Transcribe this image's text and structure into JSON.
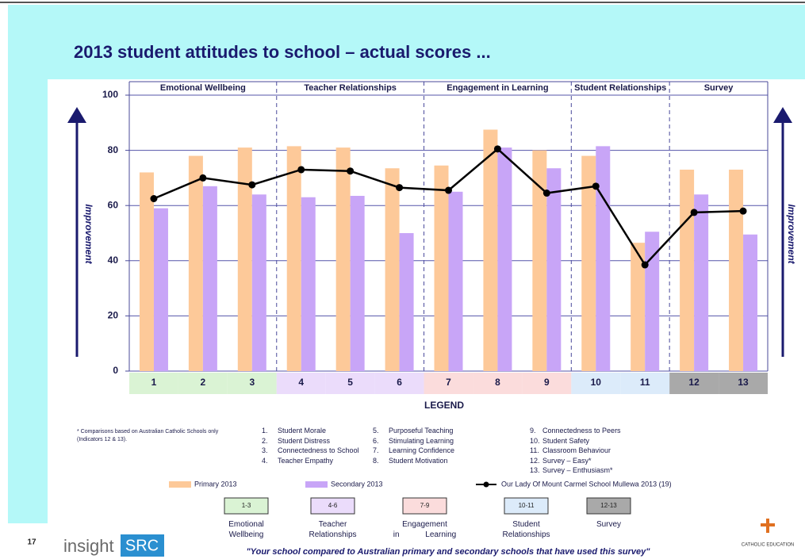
{
  "page_number": "17",
  "logo": {
    "left": "insight",
    "right": "SRC"
  },
  "org": "CATHOLIC EDUCATION",
  "quote": "\"Your school compared to Australian primary and secondary schools that have used this survey\"",
  "chart_data": {
    "type": "bar",
    "title": "2013 student attitudes to school – actual scores ...",
    "y_label": "Improvement",
    "categories": [
      "1",
      "2",
      "3",
      "4",
      "5",
      "6",
      "7",
      "8",
      "9",
      "10",
      "11",
      "12",
      "13"
    ],
    "series": [
      {
        "name": "Primary 2013",
        "type": "bar",
        "color": "#fdc999",
        "values": [
          72,
          78,
          81,
          81.5,
          81,
          73.5,
          74.5,
          87.5,
          80,
          78,
          46.5,
          73,
          73
        ]
      },
      {
        "name": "Secondary 2013",
        "type": "bar",
        "color": "#c8a5f7",
        "values": [
          59,
          67,
          64,
          63,
          63.5,
          50,
          65,
          81,
          73.5,
          81.5,
          50.5,
          64,
          49.5
        ]
      },
      {
        "name": "Our Lady Of Mount Carmel School Mullewa 2013 (19)",
        "type": "line",
        "color": "#000000",
        "values": [
          62.5,
          70,
          67.5,
          73,
          72.5,
          66.5,
          65.5,
          80.5,
          64.5,
          67,
          38.5,
          57.5,
          58
        ]
      }
    ],
    "ylim": [
      0,
      100
    ],
    "yticks": [
      0,
      20,
      40,
      60,
      80,
      100
    ],
    "grid": true,
    "groups": [
      {
        "name": "Emotional Wellbeing",
        "range": "1-3",
        "color": "#daf3d4"
      },
      {
        "name": "Teacher Relationships",
        "range": "4-6",
        "color": "#ebdcfb"
      },
      {
        "name": "Engagement in Learning",
        "range": "7-9",
        "color": "#fbdcdc"
      },
      {
        "name": "Student Relationships",
        "range": "10-11",
        "color": "#dcebfa"
      },
      {
        "name": "Survey",
        "range": "12-13",
        "color": "#a9a9a9"
      }
    ],
    "legend_title": "LEGEND",
    "footnote": "* Comparisons based on Australian Catholic Schools only (Indicators 12 & 13).",
    "indicators": [
      {
        "number": "1.",
        "name": "Student Morale"
      },
      {
        "number": "2.",
        "name": "Student Distress"
      },
      {
        "number": "3.",
        "name": "Connectedness to School"
      },
      {
        "number": "4.",
        "name": "Teacher Empathy"
      },
      {
        "number": "5.",
        "name": "Purposeful Teaching"
      },
      {
        "number": "6.",
        "name": "Stimulating Learning"
      },
      {
        "number": "7.",
        "name": "Learning Confidence"
      },
      {
        "number": "8.",
        "name": "Student Motivation"
      },
      {
        "number": "9.",
        "name": "Connectedness to Peers"
      },
      {
        "number": "10.",
        "name": "Student Safety"
      },
      {
        "number": "11.",
        "name": "Classroom Behaviour"
      },
      {
        "number": "12.",
        "name": "Survey – Easy*"
      },
      {
        "number": "13.",
        "name": "Survey – Enthusiasm*"
      }
    ]
  }
}
